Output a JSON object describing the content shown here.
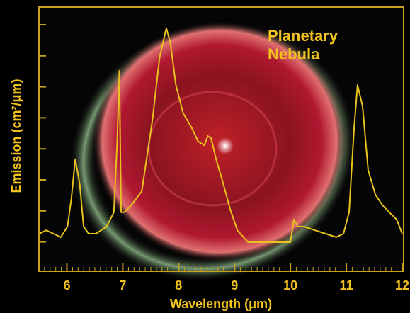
{
  "chart_data": {
    "type": "line",
    "title": "Planetary Nebula",
    "xlabel": "Wavelength (μm)",
    "ylabel": "Emission (cm²/μm)",
    "x": [
      5.51,
      5.63,
      5.76,
      5.89,
      6.01,
      6.08,
      6.15,
      6.23,
      6.3,
      6.39,
      6.52,
      6.71,
      6.84,
      6.9,
      6.94,
      6.97,
      7.03,
      7.15,
      7.34,
      7.53,
      7.66,
      7.78,
      7.85,
      7.95,
      8.08,
      8.23,
      8.35,
      8.46,
      8.52,
      8.58,
      8.67,
      8.8,
      8.92,
      9.05,
      9.24,
      10.0,
      10.06,
      10.13,
      10.25,
      10.44,
      10.63,
      10.82,
      10.95,
      11.05,
      11.14,
      11.2,
      11.29,
      11.39,
      11.52,
      11.65,
      11.77,
      11.9,
      12.0
    ],
    "values": [
      1.42,
      1.55,
      1.42,
      1.29,
      1.69,
      2.76,
      4.24,
      3.3,
      1.69,
      1.42,
      1.42,
      1.69,
      2.23,
      4.91,
      7.59,
      2.23,
      2.23,
      2.49,
      3.03,
      5.71,
      8.12,
      9.2,
      8.66,
      7.05,
      5.98,
      5.44,
      4.91,
      4.77,
      5.12,
      5.04,
      4.24,
      3.3,
      2.36,
      1.55,
      1.1,
      1.1,
      1.96,
      1.69,
      1.69,
      1.55,
      1.42,
      1.29,
      1.42,
      2.23,
      5.44,
      7.05,
      6.25,
      3.83,
      2.9,
      2.49,
      2.23,
      1.96,
      1.42
    ],
    "color": "#e8c21c",
    "xlim": [
      5.5,
      12
    ],
    "ylim": [
      0,
      10
    ],
    "xticks": [
      6,
      7,
      8,
      9,
      10,
      11,
      12
    ]
  }
}
